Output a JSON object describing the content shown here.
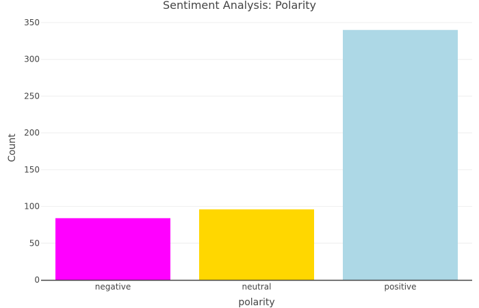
{
  "chart_data": {
    "type": "bar",
    "title": "Sentiment Analysis: Polarity",
    "xlabel": "polarity",
    "ylabel": "Count",
    "categories": [
      "negative",
      "neutral",
      "positive"
    ],
    "values": [
      84,
      96,
      340
    ],
    "colors": [
      "#ff00ff",
      "#ffd700",
      "#add8e6"
    ],
    "ylim": [
      0,
      350
    ],
    "yticks": [
      0,
      50,
      100,
      150,
      200,
      250,
      300,
      350
    ],
    "grid": true,
    "legend": "none"
  }
}
